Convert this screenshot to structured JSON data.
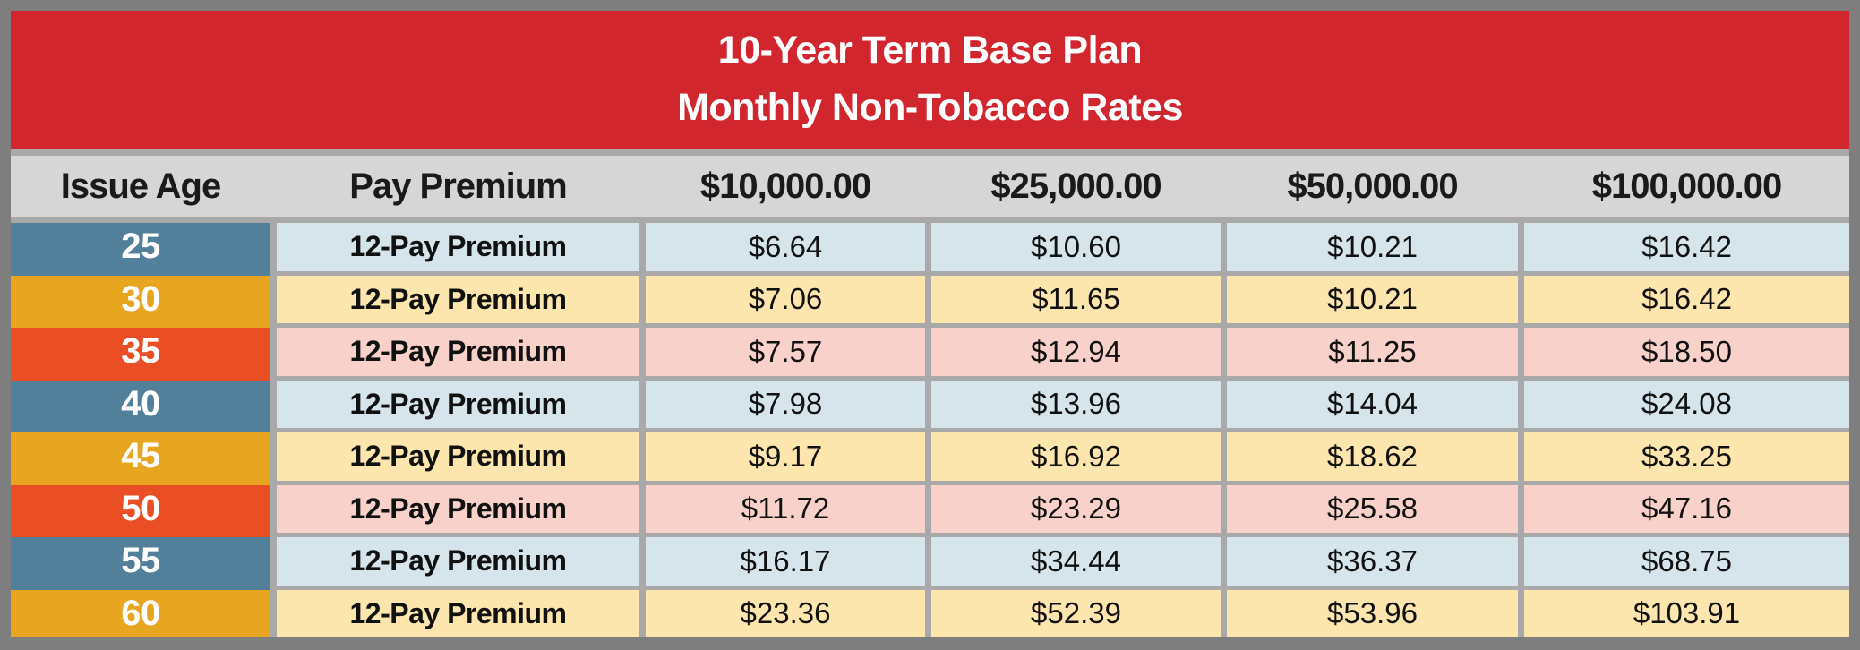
{
  "title": {
    "line1": "10-Year Term Base Plan",
    "line2": "Monthly Non-Tobacco Rates"
  },
  "columns": [
    "Issue Age",
    "Pay Premium",
    "$10,000.00",
    "$25,000.00",
    "$50,000.00",
    "$100,000.00"
  ],
  "rows": [
    {
      "age": "25",
      "plan": "12-Pay Premium",
      "scheme": "blue",
      "values": [
        "$6.64",
        "$10.60",
        "$10.21",
        "$16.42"
      ]
    },
    {
      "age": "30",
      "plan": "12-Pay Premium",
      "scheme": "gold",
      "values": [
        "$7.06",
        "$11.65",
        "$10.21",
        "$16.42"
      ]
    },
    {
      "age": "35",
      "plan": "12-Pay Premium",
      "scheme": "red",
      "values": [
        "$7.57",
        "$12.94",
        "$11.25",
        "$18.50"
      ]
    },
    {
      "age": "40",
      "plan": "12-Pay Premium",
      "scheme": "blue",
      "values": [
        "$7.98",
        "$13.96",
        "$14.04",
        "$24.08"
      ]
    },
    {
      "age": "45",
      "plan": "12-Pay Premium",
      "scheme": "gold",
      "values": [
        "$9.17",
        "$16.92",
        "$18.62",
        "$33.25"
      ]
    },
    {
      "age": "50",
      "plan": "12-Pay Premium",
      "scheme": "red",
      "values": [
        "$11.72",
        "$23.29",
        "$25.58",
        "$47.16"
      ]
    },
    {
      "age": "55",
      "plan": "12-Pay Premium",
      "scheme": "blue",
      "values": [
        "$16.17",
        "$34.44",
        "$36.37",
        "$68.75"
      ]
    },
    {
      "age": "60",
      "plan": "12-Pay Premium",
      "scheme": "gold",
      "values": [
        "$23.36",
        "$52.39",
        "$53.96",
        "$103.91"
      ]
    }
  ],
  "palette": {
    "c_border": "#7E7E7E",
    "c_gridline": "#A9A9A9",
    "c_title_bg": "#D2262F",
    "c_title_text": "#FFFFFF",
    "c_header_bg": "#D6D6D6",
    "age_blue": "#527F99",
    "age_gold": "#E8A620",
    "age_red": "#E94E25",
    "row_blue": "#D6E5EC",
    "row_gold": "#FDE5AE",
    "row_red": "#F8D2CA"
  },
  "chart_data": {
    "type": "table",
    "title": "10-Year Term Base Plan Monthly Non-Tobacco Rates",
    "columns": [
      "Issue Age",
      "Pay Premium",
      "$10,000.00",
      "$25,000.00",
      "$50,000.00",
      "$100,000.00"
    ],
    "rows": [
      [
        "25",
        "12-Pay Premium",
        6.64,
        10.6,
        10.21,
        16.42
      ],
      [
        "30",
        "12-Pay Premium",
        7.06,
        11.65,
        10.21,
        16.42
      ],
      [
        "35",
        "12-Pay Premium",
        7.57,
        12.94,
        11.25,
        18.5
      ],
      [
        "40",
        "12-Pay Premium",
        7.98,
        13.96,
        14.04,
        24.08
      ],
      [
        "45",
        "12-Pay Premium",
        9.17,
        16.92,
        18.62,
        33.25
      ],
      [
        "50",
        "12-Pay Premium",
        11.72,
        23.29,
        25.58,
        47.16
      ],
      [
        "55",
        "12-Pay Premium",
        16.17,
        34.44,
        36.37,
        68.75
      ],
      [
        "60",
        "12-Pay Premium",
        23.36,
        52.39,
        53.96,
        103.91
      ]
    ]
  }
}
